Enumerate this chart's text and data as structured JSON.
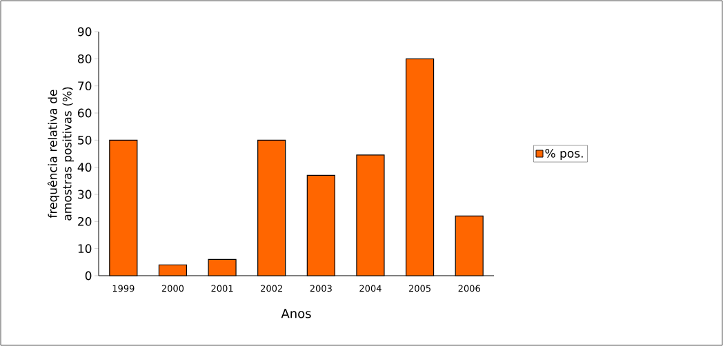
{
  "chart_data": {
    "type": "bar",
    "xlabel": "Anos",
    "ylabel": "frequência relativa de amostras positivas (%)",
    "categories": [
      "1999",
      "2000",
      "2001",
      "2002",
      "2003",
      "2004",
      "2005",
      "2006"
    ],
    "series": [
      {
        "name": "% pos.",
        "color": "#ff6600",
        "values": [
          50,
          4,
          6,
          50,
          37,
          44.5,
          80,
          22
        ]
      }
    ],
    "ylim": [
      0,
      90
    ],
    "yticks": [
      0,
      10,
      20,
      30,
      40,
      50,
      60,
      70,
      80,
      90
    ],
    "grid": false,
    "legend": "right"
  }
}
